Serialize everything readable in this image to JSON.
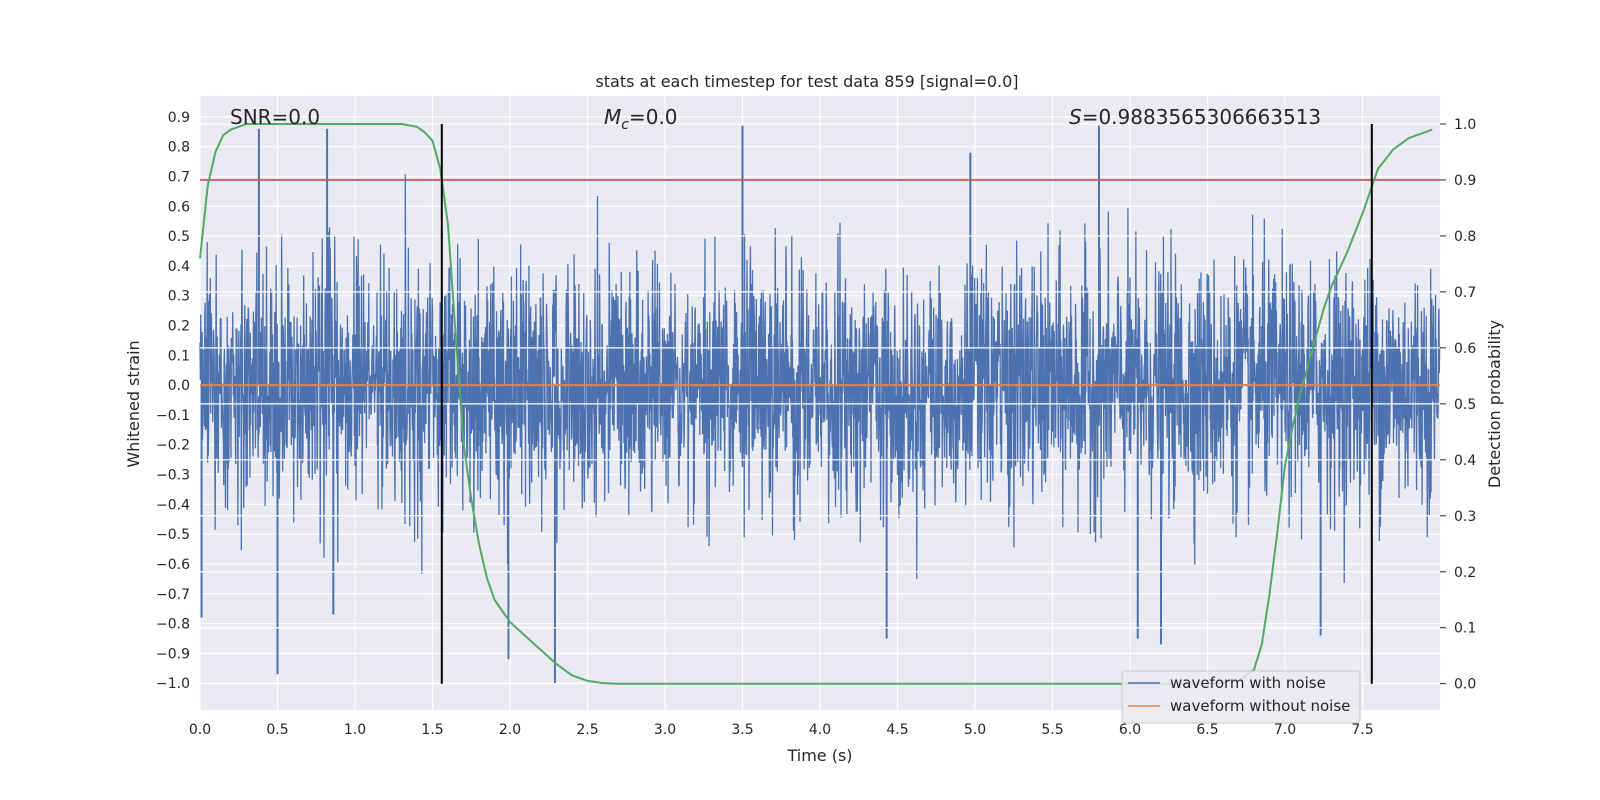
{
  "chart_data": {
    "type": "line",
    "title": "stats at each timestep for test data 859 [signal=0.0]",
    "xlabel": "Time (s)",
    "ylabel": "Whitened strain",
    "y2label": "Detection probability",
    "xlim": [
      0.0,
      8.0
    ],
    "ylim": [
      -1.09,
      0.97
    ],
    "y2lim": [
      -0.047,
      1.05
    ],
    "xticks": [
      0.0,
      0.5,
      1.0,
      1.5,
      2.0,
      2.5,
      3.0,
      3.5,
      4.0,
      4.5,
      5.0,
      5.5,
      6.0,
      6.5,
      7.0,
      7.5
    ],
    "xtick_labels": [
      "0.0",
      "0.5",
      "1.0",
      "1.5",
      "2.0",
      "2.5",
      "3.0",
      "3.5",
      "4.0",
      "4.5",
      "5.0",
      "5.5",
      "6.0",
      "6.5",
      "7.0",
      "7.5"
    ],
    "yticks": [
      0.9,
      0.8,
      0.7,
      0.6,
      0.5,
      0.4,
      0.3,
      0.2,
      0.1,
      0.0,
      -0.1,
      -0.2,
      -0.3,
      -0.4,
      -0.5,
      -0.6,
      -0.7,
      -0.8,
      -0.9,
      -1.0
    ],
    "ytick_labels": [
      "0.9",
      "0.8",
      "0.7",
      "0.6",
      "0.5",
      "0.4",
      "0.3",
      "0.2",
      "0.1",
      "0.0",
      "−0.1",
      "−0.2",
      "−0.3",
      "−0.4",
      "−0.5",
      "−0.6",
      "−0.7",
      "−0.8",
      "−0.9",
      "−1.0"
    ],
    "y2ticks": [
      1.0,
      0.9,
      0.8,
      0.7,
      0.6,
      0.5,
      0.4,
      0.3,
      0.2,
      0.1,
      0.0
    ],
    "y2tick_labels": [
      "1.0",
      "0.9",
      "0.8",
      "0.7",
      "0.6",
      "0.5",
      "0.4",
      "0.3",
      "0.2",
      "0.1",
      "0.0"
    ],
    "grid": true,
    "legend_position": "lower-right",
    "annotations": {
      "snr": "SNR=0.0",
      "mc_symbol": "M",
      "mc_subscript": "c",
      "mc_value": "=0.0",
      "s_symbol": "S",
      "s_value": "=0.9883565306663513"
    },
    "series": [
      {
        "name": "waveform with noise",
        "color": "#4c72b0",
        "kind": "noise",
        "amplitude_sigma": 0.2,
        "spikes": [
          {
            "x": 0.38,
            "y": 0.86
          },
          {
            "x": 0.82,
            "y": 0.86
          },
          {
            "x": 3.5,
            "y": 0.87
          },
          {
            "x": 5.8,
            "y": 0.87
          },
          {
            "x": 4.97,
            "y": 0.78
          },
          {
            "x": 0.5,
            "y": -0.97
          },
          {
            "x": 2.29,
            "y": -1.0
          },
          {
            "x": 1.99,
            "y": -0.92
          },
          {
            "x": 6.2,
            "y": -0.87
          },
          {
            "x": 6.05,
            "y": -0.85
          },
          {
            "x": 4.43,
            "y": -0.85
          },
          {
            "x": 7.23,
            "y": -0.84
          },
          {
            "x": 0.86,
            "y": -0.77
          },
          {
            "x": 0.01,
            "y": -0.78
          }
        ]
      },
      {
        "name": "waveform without noise",
        "color": "#dd8452",
        "x": [
          0.0,
          8.0
        ],
        "y": [
          0.0,
          0.0
        ]
      },
      {
        "name": "",
        "axis": "right",
        "color": "#55a868",
        "x": [
          0.0,
          0.05,
          0.1,
          0.15,
          0.2,
          0.3,
          0.4,
          0.6,
          0.8,
          1.0,
          1.2,
          1.3,
          1.4,
          1.45,
          1.5,
          1.55,
          1.6,
          1.65,
          1.7,
          1.75,
          1.8,
          1.85,
          1.9,
          2.0,
          2.1,
          2.2,
          2.3,
          2.4,
          2.5,
          2.6,
          2.7,
          2.8,
          3.0,
          4.0,
          5.0,
          6.0,
          6.5,
          6.7,
          6.8,
          6.85,
          6.9,
          6.95,
          7.0,
          7.05,
          7.1,
          7.15,
          7.2,
          7.25,
          7.3,
          7.4,
          7.5,
          7.55,
          7.6,
          7.7,
          7.8,
          7.9,
          7.95
        ],
        "y": [
          0.76,
          0.89,
          0.95,
          0.98,
          0.99,
          1.0,
          1.0,
          1.0,
          1.0,
          1.0,
          1.0,
          1.0,
          0.995,
          0.985,
          0.97,
          0.92,
          0.82,
          0.62,
          0.43,
          0.33,
          0.25,
          0.19,
          0.15,
          0.11,
          0.085,
          0.06,
          0.035,
          0.015,
          0.005,
          0.001,
          0.0,
          0.0,
          0.0,
          0.0,
          0.0,
          0.0,
          0.0,
          0.005,
          0.025,
          0.07,
          0.16,
          0.27,
          0.39,
          0.46,
          0.52,
          0.57,
          0.62,
          0.67,
          0.71,
          0.77,
          0.84,
          0.88,
          0.92,
          0.955,
          0.975,
          0.985,
          0.99
        ]
      }
    ],
    "hlines": [
      {
        "y2": 0.9,
        "color": "#c44e52"
      }
    ],
    "vlines": [
      {
        "x": 1.56,
        "from_y2": 0.0,
        "to_y2": 1.0,
        "color": "#000000"
      },
      {
        "x": 7.56,
        "from_y2": 0.0,
        "to_y2": 1.0,
        "color": "#000000"
      }
    ]
  }
}
